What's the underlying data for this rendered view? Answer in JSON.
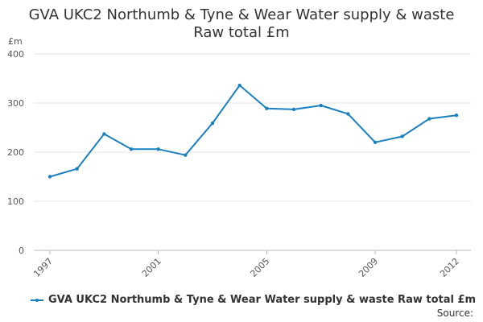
{
  "title_line1": "GVA UKC2 Northumb & Tyne & Wear Water supply & waste",
  "title_line2": "Raw total £m",
  "source_label": "Source:",
  "colors": {
    "series": "#1a80c0",
    "grid": "#e6e6e6",
    "axis": "#bbbbbb"
  },
  "chart_data": {
    "type": "line",
    "title": "GVA UKC2 Northumb & Tyne & Wear Water supply & waste Raw total £m",
    "ylabel": "£m",
    "xlabel": "",
    "ylim": [
      0,
      400
    ],
    "yticks": [
      0,
      100,
      200,
      300,
      400
    ],
    "xlim": [
      1997,
      2012
    ],
    "xticks": [
      1997,
      2001,
      2005,
      2009,
      2012
    ],
    "grid": true,
    "legend_position": "bottom-left",
    "series": [
      {
        "name": "GVA UKC2 Northumb & Tyne & Wear Water supply & waste Raw total £m",
        "x": [
          1997,
          1998,
          1999,
          2000,
          2001,
          2002,
          2003,
          2004,
          2005,
          2006,
          2007,
          2008,
          2009,
          2010,
          2011,
          2012
        ],
        "y": [
          150,
          166,
          237,
          206,
          206,
          194,
          259,
          336,
          289,
          287,
          295,
          278,
          220,
          232,
          268,
          275
        ]
      }
    ]
  }
}
